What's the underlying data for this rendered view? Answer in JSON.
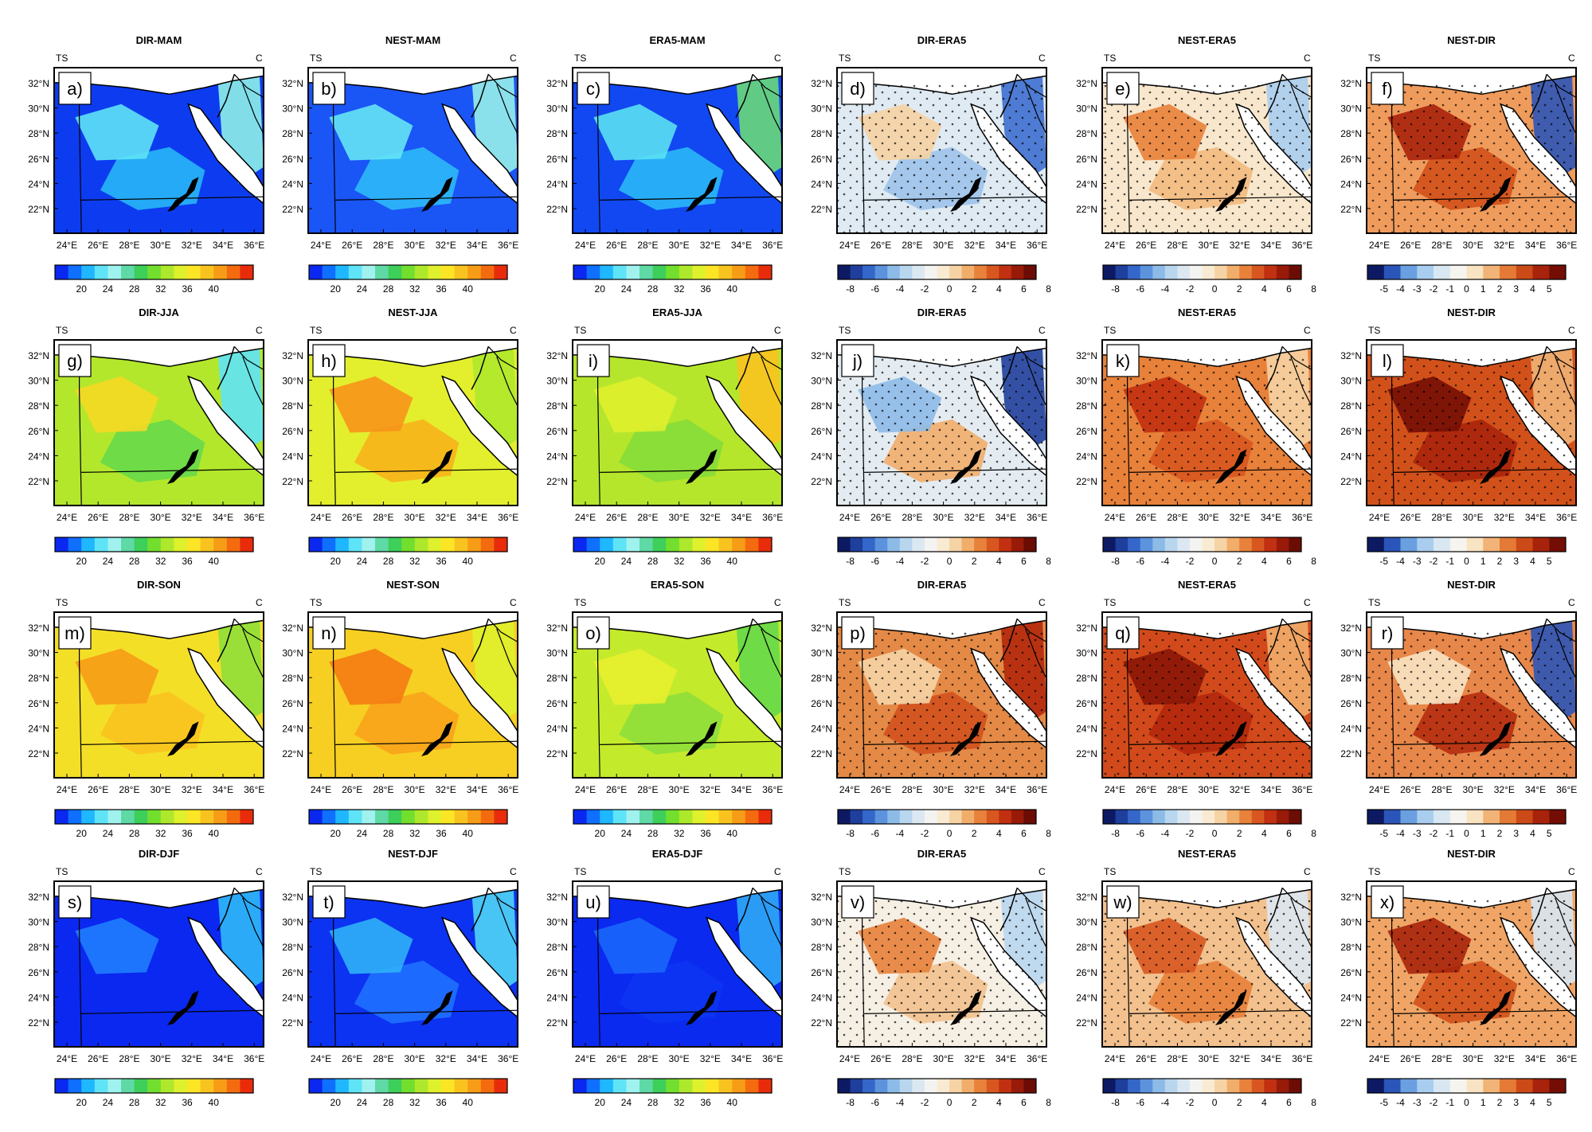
{
  "figure": {
    "corner_labels": {
      "left": "TS",
      "right": "C"
    },
    "lat_ticks": [
      "32°N",
      "30°N",
      "28°N",
      "26°N",
      "24°N",
      "22°N"
    ],
    "lon_ticks": [
      "24°E",
      "26°E",
      "28°E",
      "30°E",
      "32°E",
      "34°E",
      "36°E"
    ],
    "colorbars": {
      "abs": {
        "ticks": [
          "20",
          "24",
          "28",
          "32",
          "36",
          "40"
        ],
        "colors": [
          "#0a28f0",
          "#0f6fff",
          "#1fb7ff",
          "#5fe3f7",
          "#9ff2ee",
          "#5fd9a6",
          "#3dcf5a",
          "#72de2e",
          "#aee82c",
          "#dff02d",
          "#fbe525",
          "#f9c31f",
          "#f79c17",
          "#f46b0f",
          "#e82c0b"
        ]
      },
      "diff": {
        "ticks": [
          "-8",
          "-6",
          "-4",
          "-2",
          "0",
          "2",
          "4",
          "6",
          "8"
        ],
        "colors": [
          "#0d1a63",
          "#1f3f9c",
          "#3467c9",
          "#5d93dd",
          "#8dbbe8",
          "#b9d6ef",
          "#dbe8f2",
          "#f3f4f2",
          "#f9ead2",
          "#f6d3a5",
          "#f1ad6a",
          "#e8813a",
          "#d85720",
          "#c13010",
          "#981a09",
          "#6b0d05"
        ]
      },
      "nd": {
        "ticks": [
          "-5",
          "-4",
          "-3",
          "-2",
          "-1",
          "0",
          "1",
          "2",
          "3",
          "4",
          "5"
        ],
        "colors": [
          "#0d1a63",
          "#2b55b8",
          "#6a9fe0",
          "#a9cdef",
          "#d8e7f2",
          "#f6f4ee",
          "#f8e3c2",
          "#f1b377",
          "#e47a35",
          "#cc4a17",
          "#a8230b",
          "#740e05"
        ]
      }
    },
    "panels": [
      {
        "label": "a)",
        "title": "DIR-MAM",
        "kind": "abs",
        "base": "#0d3cf0",
        "spots": [
          {
            "fill": "#27b6f6"
          },
          {
            "fill": "#5fe2f7"
          },
          {
            "fill": "#8ef0e8"
          }
        ]
      },
      {
        "label": "b)",
        "title": "NEST-MAM",
        "kind": "abs",
        "base": "#1a55f6",
        "spots": [
          {
            "fill": "#2db9f8"
          },
          {
            "fill": "#65e4f6"
          },
          {
            "fill": "#97f1ea"
          }
        ]
      },
      {
        "label": "c)",
        "title": "ERA5-MAM",
        "kind": "abs",
        "base": "#1148f2",
        "spots": [
          {
            "fill": "#2ab8f7"
          },
          {
            "fill": "#5be0f2"
          },
          {
            "fill": "#6ad97a"
          }
        ]
      },
      {
        "label": "d)",
        "title": "DIR-ERA5",
        "kind": "diff",
        "base": "#dfeaf2",
        "spots": [
          {
            "fill": "#9dc3ea"
          },
          {
            "fill": "#f6d2a2"
          },
          {
            "fill": "#3e6fcf"
          }
        ]
      },
      {
        "label": "e)",
        "title": "NEST-ERA5",
        "kind": "diff",
        "base": "#f8e7cc",
        "spots": [
          {
            "fill": "#f2ba80"
          },
          {
            "fill": "#e8813a"
          },
          {
            "fill": "#a9cdef"
          }
        ]
      },
      {
        "label": "f)",
        "title": "NEST-DIR",
        "kind": "nd",
        "base": "#ef9b5c",
        "spots": [
          {
            "fill": "#d2511a"
          },
          {
            "fill": "#a8230b"
          },
          {
            "fill": "#2b55b8"
          }
        ]
      },
      {
        "label": "g)",
        "title": "DIR-JJA",
        "kind": "abs",
        "base": "#b3e72c",
        "spots": [
          {
            "fill": "#66d94a"
          },
          {
            "fill": "#f5d823"
          },
          {
            "fill": "#5fe3f7"
          }
        ]
      },
      {
        "label": "h)",
        "title": "NEST-JJA",
        "kind": "abs",
        "base": "#e3ef2d",
        "spots": [
          {
            "fill": "#f7b21b"
          },
          {
            "fill": "#f7931a"
          },
          {
            "fill": "#aee82c"
          }
        ]
      },
      {
        "label": "i)",
        "title": "ERA5-JJA",
        "kind": "abs",
        "base": "#b5e62c",
        "spots": [
          {
            "fill": "#86dc38"
          },
          {
            "fill": "#dff02d"
          },
          {
            "fill": "#f9c31f"
          }
        ]
      },
      {
        "label": "j)",
        "title": "DIR-ERA5",
        "kind": "diff",
        "base": "#e4ecf2",
        "spots": [
          {
            "fill": "#f1ad6a"
          },
          {
            "fill": "#8dbbe8"
          },
          {
            "fill": "#1f3f9c"
          }
        ]
      },
      {
        "label": "k)",
        "title": "NEST-ERA5",
        "kind": "diff",
        "base": "#e8813a",
        "spots": [
          {
            "fill": "#d85720"
          },
          {
            "fill": "#c13010"
          },
          {
            "fill": "#f6d3a5"
          }
        ]
      },
      {
        "label": "l)",
        "title": "NEST-DIR",
        "kind": "nd",
        "base": "#d2511a",
        "spots": [
          {
            "fill": "#a8230b"
          },
          {
            "fill": "#740e05"
          },
          {
            "fill": "#f1b377"
          }
        ]
      },
      {
        "label": "m)",
        "title": "DIR-SON",
        "kind": "abs",
        "base": "#f4df27",
        "spots": [
          {
            "fill": "#f9c31f"
          },
          {
            "fill": "#f79c17"
          },
          {
            "fill": "#8fdf3a"
          }
        ]
      },
      {
        "label": "n)",
        "title": "NEST-SON",
        "kind": "abs",
        "base": "#f7cf22",
        "spots": [
          {
            "fill": "#f7a31a"
          },
          {
            "fill": "#f47b13"
          },
          {
            "fill": "#dff02d"
          }
        ]
      },
      {
        "label": "o)",
        "title": "ERA5-SON",
        "kind": "abs",
        "base": "#c4ea2c",
        "spots": [
          {
            "fill": "#8fdf3a"
          },
          {
            "fill": "#e8ef2d"
          },
          {
            "fill": "#66d94a"
          }
        ]
      },
      {
        "label": "p)",
        "title": "DIR-ERA5",
        "kind": "diff",
        "base": "#e48a46",
        "spots": [
          {
            "fill": "#d1511e"
          },
          {
            "fill": "#f6d3a5"
          },
          {
            "fill": "#b3280c"
          }
        ]
      },
      {
        "label": "q)",
        "title": "NEST-ERA5",
        "kind": "diff",
        "base": "#d24a1b",
        "spots": [
          {
            "fill": "#b3280c"
          },
          {
            "fill": "#8a1607"
          },
          {
            "fill": "#f1ad6a"
          }
        ]
      },
      {
        "label": "r)",
        "title": "NEST-DIR",
        "kind": "nd",
        "base": "#e8874a",
        "spots": [
          {
            "fill": "#b52d0e"
          },
          {
            "fill": "#f8e3c2"
          },
          {
            "fill": "#2b55b8"
          }
        ]
      },
      {
        "label": "s)",
        "title": "DIR-DJF",
        "kind": "abs",
        "base": "#0a28f0",
        "spots": [
          {
            "fill": "#0a28f0"
          },
          {
            "fill": "#1f7dff"
          },
          {
            "fill": "#2fb8f7"
          }
        ]
      },
      {
        "label": "t)",
        "title": "NEST-DJF",
        "kind": "abs",
        "base": "#0c32f2",
        "spots": [
          {
            "fill": "#1f70ff"
          },
          {
            "fill": "#2fb0f8"
          },
          {
            "fill": "#4fd4f5"
          }
        ]
      },
      {
        "label": "u)",
        "title": "ERA5-DJF",
        "kind": "abs",
        "base": "#0a2af0",
        "spots": [
          {
            "fill": "#0c34f2"
          },
          {
            "fill": "#1a66fb"
          },
          {
            "fill": "#2ea8f6"
          }
        ]
      },
      {
        "label": "v)",
        "title": "DIR-ERA5",
        "kind": "diff",
        "base": "#f6efe4",
        "spots": [
          {
            "fill": "#f3c18e"
          },
          {
            "fill": "#e8813a"
          },
          {
            "fill": "#b9d6ef"
          }
        ]
      },
      {
        "label": "w)",
        "title": "NEST-ERA5",
        "kind": "diff",
        "base": "#f3c18e",
        "spots": [
          {
            "fill": "#e8813a"
          },
          {
            "fill": "#d85720"
          },
          {
            "fill": "#dbe8f2"
          }
        ]
      },
      {
        "label": "x)",
        "title": "NEST-DIR",
        "kind": "nd",
        "base": "#f0a566",
        "spots": [
          {
            "fill": "#d2511a"
          },
          {
            "fill": "#a8230b"
          },
          {
            "fill": "#d8e7f2"
          }
        ]
      }
    ]
  }
}
